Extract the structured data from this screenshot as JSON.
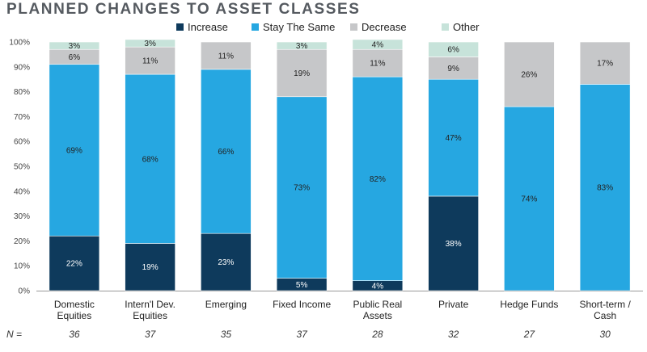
{
  "chart_data": {
    "type": "bar",
    "stacked": true,
    "title": "PLANNED CHANGES TO ASSET CLASSES",
    "categories": [
      [
        "Domestic",
        "Equities"
      ],
      [
        "Intern'l Dev.",
        "Equities"
      ],
      [
        "Emerging"
      ],
      [
        "Fixed Income"
      ],
      [
        "Public Real",
        "Assets"
      ],
      [
        "Private"
      ],
      [
        "Hedge Funds"
      ],
      [
        "Short-term /",
        "Cash"
      ]
    ],
    "series": [
      {
        "name": "Increase",
        "color": "#0e3a5c",
        "label_color": "#ffffff",
        "values": [
          22,
          19,
          23,
          5,
          4,
          38,
          0,
          0
        ]
      },
      {
        "name": "Stay The Same",
        "color": "#26a7e1",
        "label_color": "#222222",
        "values": [
          69,
          68,
          66,
          73,
          82,
          47,
          74,
          83
        ]
      },
      {
        "name": "Decrease",
        "color": "#c6c7c9",
        "label_color": "#222222",
        "values": [
          6,
          11,
          11,
          19,
          11,
          9,
          26,
          17
        ]
      },
      {
        "name": "Other",
        "color": "#c7e3da",
        "label_color": "#222222",
        "values": [
          3,
          3,
          0,
          3,
          4,
          6,
          0,
          0
        ]
      }
    ],
    "y_ticks": [
      "0%",
      "10%",
      "20%",
      "30%",
      "40%",
      "50%",
      "60%",
      "70%",
      "80%",
      "90%",
      "100%"
    ],
    "ylim": [
      0,
      100
    ],
    "legend": "top-center",
    "n_label": "N =",
    "n_values": [
      "36",
      "37",
      "35",
      "37",
      "28",
      "32",
      "27",
      "30"
    ],
    "grid": false
  }
}
